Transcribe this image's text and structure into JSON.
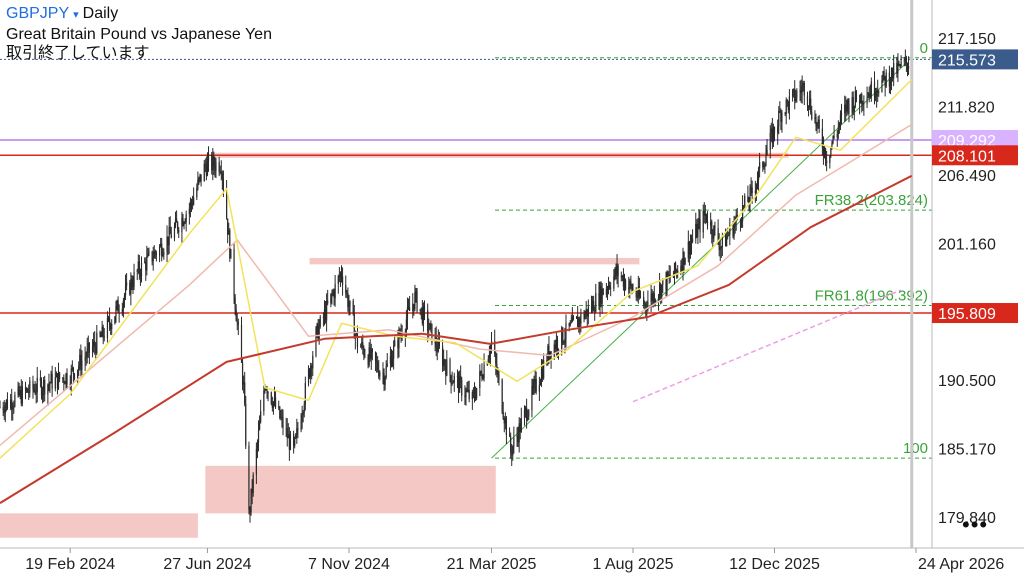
{
  "header": {
    "symbol": "GBPJPY",
    "caret": "▾",
    "timeframe": "Daily",
    "description": "Great Britain Pound vs Japanese Yen",
    "status": "取引終了しています"
  },
  "more_menu_icon": "ellipsis-icon",
  "more_menu_text": "•••",
  "colors": {
    "candle": "#2a2a2a",
    "ma_short": "#f2e35a",
    "ma_mid": "#f0b9b0",
    "ma_long": "#c43a2c",
    "ma_projection": "#ee9ee6",
    "support": "#d8281c",
    "current_price": "#3b5b8c",
    "purple_level": "#b77bf0",
    "fib": "#3aa33a",
    "zone": "#f4c8c4",
    "trendline": "#45b045",
    "cursor": "#c8c8c8"
  },
  "chart_data": {
    "type": "candlestick",
    "instrument": "GBPJPY",
    "timeframe": "Daily",
    "y_ticks": [
      "217.150",
      "211.820",
      "206.490",
      "201.160",
      "195.809",
      "190.500",
      "185.170",
      "179.840"
    ],
    "ylim": [
      177.5,
      220.2
    ],
    "x_ticks": [
      "19 Feb 2024",
      "27 Jun 2024",
      "7 Nov 2024",
      "21 Mar 2025",
      "1 Aug 2025",
      "12 Dec 2025",
      "24 Apr 2026"
    ],
    "price_labels": [
      {
        "value": 215.573,
        "text": "215.573",
        "kind": "current"
      },
      {
        "value": 209.292,
        "text": "209.292",
        "kind": "purple"
      },
      {
        "value": 208.101,
        "text": "208.101",
        "kind": "support"
      },
      {
        "value": 195.809,
        "text": "195.809",
        "kind": "support"
      }
    ],
    "horizontal_levels": [
      {
        "value": 215.573,
        "style": "dotted",
        "kind": "current"
      },
      {
        "value": 209.292,
        "style": "solid",
        "kind": "purple"
      },
      {
        "value": 208.101,
        "style": "solid",
        "kind": "support"
      },
      {
        "value": 195.809,
        "style": "solid",
        "kind": "support"
      }
    ],
    "fibonacci": [
      {
        "label": "0",
        "value": 215.7
      },
      {
        "label": "FR38.2(203.824)",
        "value": 203.824
      },
      {
        "label": "FR61.8(196.392)",
        "value": 196.392
      },
      {
        "label": "100",
        "value": 184.5
      }
    ],
    "zones": [
      {
        "from": "2023-12",
        "to": "2024-06-18",
        "low": 178.3,
        "high": 180.2
      },
      {
        "from": "2024-06-25",
        "to": "2025-03-25",
        "low": 180.2,
        "high": 183.9
      },
      {
        "from": "2024-07-03",
        "to": "2025-12-25",
        "low": 207.9,
        "high": 208.3
      },
      {
        "from": "2024-10-01",
        "to": "2025-08-07",
        "low": 199.6,
        "high": 200.1
      }
    ],
    "trendline": {
      "from": {
        "date": "2025-03-21",
        "value": 184.5
      },
      "to": {
        "date": "2026-04-15",
        "value": 215.3
      }
    },
    "ma_long_projection": [
      {
        "date": "2025-08-01",
        "value": 188.9
      },
      {
        "date": "2026-04-10",
        "value": 197.6
      }
    ],
    "cursor_date": "2026-04-20",
    "series": [
      {
        "kind": "ohlc",
        "points": [
          {
            "date": "2023-12-15",
            "close": 188.5
          },
          {
            "date": "2024-01-12",
            "close": 189.8
          },
          {
            "date": "2024-02-19",
            "close": 191.0
          },
          {
            "date": "2024-03-20",
            "close": 194.0
          },
          {
            "date": "2024-04-22",
            "close": 199.0
          },
          {
            "date": "2024-05-20",
            "close": 201.5
          },
          {
            "date": "2024-06-10",
            "close": 204.0
          },
          {
            "date": "2024-06-25",
            "close": 207.3
          },
          {
            "date": "2024-07-10",
            "close": 207.5
          },
          {
            "date": "2024-07-31",
            "close": 190.0
          },
          {
            "date": "2024-08-05",
            "close": 180.0
          },
          {
            "date": "2024-08-20",
            "close": 190.5
          },
          {
            "date": "2024-09-16",
            "close": 185.0
          },
          {
            "date": "2024-10-07",
            "close": 194.0
          },
          {
            "date": "2024-10-31",
            "close": 199.0
          },
          {
            "date": "2024-11-15",
            "close": 193.5
          },
          {
            "date": "2024-12-10",
            "close": 191.0
          },
          {
            "date": "2025-01-08",
            "close": 197.0
          },
          {
            "date": "2025-02-10",
            "close": 191.0
          },
          {
            "date": "2025-03-03",
            "close": 189.0
          },
          {
            "date": "2025-03-21",
            "close": 193.5
          },
          {
            "date": "2025-04-08",
            "close": 185.0
          },
          {
            "date": "2025-05-15",
            "close": 193.0
          },
          {
            "date": "2025-06-20",
            "close": 196.0
          },
          {
            "date": "2025-07-17",
            "close": 199.0
          },
          {
            "date": "2025-08-12",
            "close": 196.5
          },
          {
            "date": "2025-09-10",
            "close": 199.0
          },
          {
            "date": "2025-10-08",
            "close": 203.5
          },
          {
            "date": "2025-10-23",
            "close": 201.0
          },
          {
            "date": "2025-11-20",
            "close": 205.0
          },
          {
            "date": "2025-12-18",
            "close": 211.5
          },
          {
            "date": "2026-01-09",
            "close": 213.5
          },
          {
            "date": "2026-01-30",
            "close": 208.0
          },
          {
            "date": "2026-02-18",
            "close": 212.0
          },
          {
            "date": "2026-03-10",
            "close": 213.0
          },
          {
            "date": "2026-04-20",
            "close": 215.573
          }
        ]
      },
      {
        "kind": "ma_short",
        "points": [
          {
            "date": "2023-12-15",
            "value": 184.5
          },
          {
            "date": "2024-02-19",
            "value": 189.5
          },
          {
            "date": "2024-06-10",
            "value": 202.0
          },
          {
            "date": "2024-07-15",
            "value": 205.5
          },
          {
            "date": "2024-08-20",
            "value": 190.0
          },
          {
            "date": "2024-09-30",
            "value": 189.0
          },
          {
            "date": "2024-10-31",
            "value": 195.0
          },
          {
            "date": "2024-12-20",
            "value": 194.0
          },
          {
            "date": "2025-02-15",
            "value": 193.5
          },
          {
            "date": "2025-04-14",
            "value": 190.5
          },
          {
            "date": "2025-06-01",
            "value": 193.0
          },
          {
            "date": "2025-08-01",
            "value": 197.5
          },
          {
            "date": "2025-10-01",
            "value": 199.5
          },
          {
            "date": "2025-11-25",
            "value": 205.0
          },
          {
            "date": "2026-01-01",
            "value": 209.5
          },
          {
            "date": "2026-02-12",
            "value": 208.5
          },
          {
            "date": "2026-04-20",
            "value": 214.0
          }
        ]
      },
      {
        "kind": "ma_mid",
        "points": [
          {
            "date": "2023-12-15",
            "value": 185.5
          },
          {
            "date": "2024-06-10",
            "value": 198.0
          },
          {
            "date": "2024-07-25",
            "value": 201.5
          },
          {
            "date": "2024-09-30",
            "value": 194.0
          },
          {
            "date": "2024-12-15",
            "value": 194.5
          },
          {
            "date": "2025-03-10",
            "value": 193.0
          },
          {
            "date": "2025-05-15",
            "value": 192.5
          },
          {
            "date": "2025-08-01",
            "value": 195.5
          },
          {
            "date": "2025-10-20",
            "value": 199.5
          },
          {
            "date": "2026-01-01",
            "value": 205.0
          },
          {
            "date": "2026-04-20",
            "value": 210.5
          }
        ]
      },
      {
        "kind": "ma_long",
        "points": [
          {
            "date": "2023-12-15",
            "value": 181.0
          },
          {
            "date": "2024-04-01",
            "value": 186.5
          },
          {
            "date": "2024-07-15",
            "value": 192.0
          },
          {
            "date": "2024-10-15",
            "value": 193.8
          },
          {
            "date": "2025-01-15",
            "value": 194.2
          },
          {
            "date": "2025-03-20",
            "value": 193.4
          },
          {
            "date": "2025-06-01",
            "value": 194.5
          },
          {
            "date": "2025-08-15",
            "value": 195.5
          },
          {
            "date": "2025-10-30",
            "value": 198.0
          },
          {
            "date": "2026-01-15",
            "value": 202.5
          },
          {
            "date": "2026-04-20",
            "value": 206.5
          }
        ]
      }
    ]
  }
}
